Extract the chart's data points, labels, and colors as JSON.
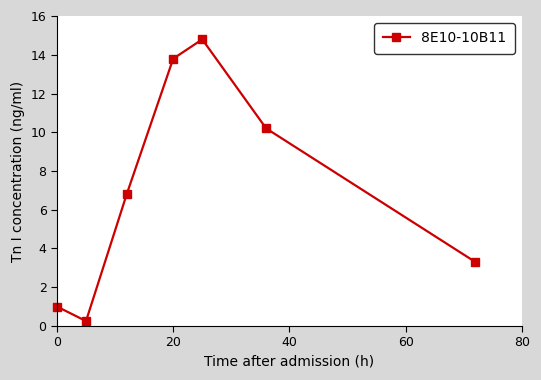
{
  "x": [
    0,
    5,
    12,
    20,
    25,
    36,
    72
  ],
  "y": [
    1.0,
    0.25,
    6.8,
    13.8,
    14.8,
    10.2,
    3.3
  ],
  "line_color": "#cc0000",
  "marker": "s",
  "marker_size": 6,
  "line_width": 1.6,
  "legend_label": "8E10-10B11",
  "xlabel": "Time after admission (h)",
  "ylabel": "Tn I concentration (ng/ml)",
  "xlim": [
    0,
    80
  ],
  "ylim": [
    0,
    16
  ],
  "xticks": [
    0,
    20,
    40,
    60,
    80
  ],
  "yticks": [
    0,
    2,
    4,
    6,
    8,
    10,
    12,
    14,
    16
  ],
  "figure_bg_color": "#d8d8d8",
  "axes_bg_color": "#ffffff",
  "legend_box_color": "#ffffff",
  "label_fontsize": 10,
  "tick_fontsize": 9,
  "legend_fontsize": 10
}
